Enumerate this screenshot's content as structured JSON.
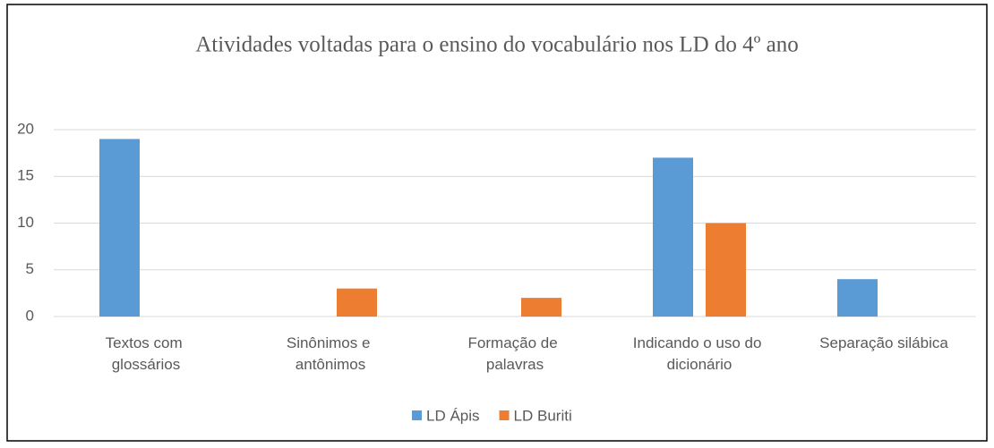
{
  "chart_data": {
    "type": "bar",
    "title": "Atividades voltadas para o ensino do vocabulário nos LD do 4º ano",
    "categories": [
      "Textos com glossários",
      "Sinônimos e antônimos",
      "Formação de palavras",
      "Indicando o uso do dicionário",
      "Separação silábica"
    ],
    "series": [
      {
        "name": "LD Ápis",
        "color": "#5b9bd5",
        "values": [
          19,
          0,
          0,
          17,
          4
        ]
      },
      {
        "name": "LD Buriti",
        "color": "#ed7d31",
        "values": [
          0,
          3,
          2,
          10,
          0
        ]
      }
    ],
    "ylim": [
      0,
      20
    ],
    "yticks": [
      0,
      5,
      10,
      15,
      20
    ],
    "grid": true,
    "legend": "bottom"
  }
}
